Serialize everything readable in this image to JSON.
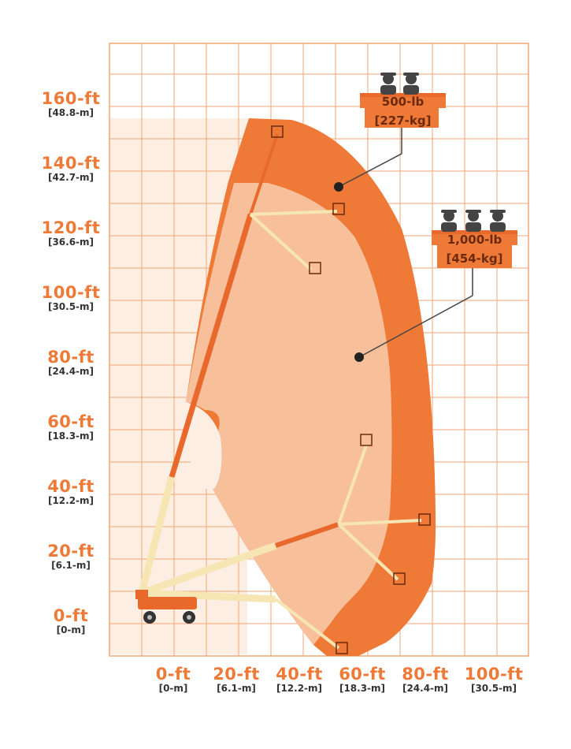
{
  "y_axis": [
    {
      "ft": "160-ft",
      "m": "[48.8-m]"
    },
    {
      "ft": "140-ft",
      "m": "[42.7-m]"
    },
    {
      "ft": "120-ft",
      "m": "[36.6-m]"
    },
    {
      "ft": "100-ft",
      "m": "[30.5-m]"
    },
    {
      "ft": "80-ft",
      "m": "[24.4-m]"
    },
    {
      "ft": "60-ft",
      "m": "[18.3-m]"
    },
    {
      "ft": "40-ft",
      "m": "[12.2-m]"
    },
    {
      "ft": "20-ft",
      "m": "[6.1-m]"
    },
    {
      "ft": "0-ft",
      "m": "[0-m]"
    }
  ],
  "x_axis": [
    {
      "ft": "0-ft",
      "m": "[0-m]"
    },
    {
      "ft": "20-ft",
      "m": "[6.1-m]"
    },
    {
      "ft": "40-ft",
      "m": "[12.2-m]"
    },
    {
      "ft": "60-ft",
      "m": "[18.3-m]"
    },
    {
      "ft": "80-ft",
      "m": "[24.4-m]"
    },
    {
      "ft": "100-ft",
      "m": "[30.5-m]"
    }
  ],
  "capacities": [
    {
      "weight": "500-lb",
      "metric": "[227-kg]",
      "persons": 2
    },
    {
      "weight": "1,000-lb",
      "metric": "[454-kg]",
      "persons": 3
    }
  ],
  "colors": {
    "grid": "#f3a674",
    "outer_zone": "#ef7a38",
    "inner_zone": "#f7c4a0",
    "boom": "#e8692b",
    "jib": "#f6e6b3",
    "label_orange": "#ee7a37"
  }
}
